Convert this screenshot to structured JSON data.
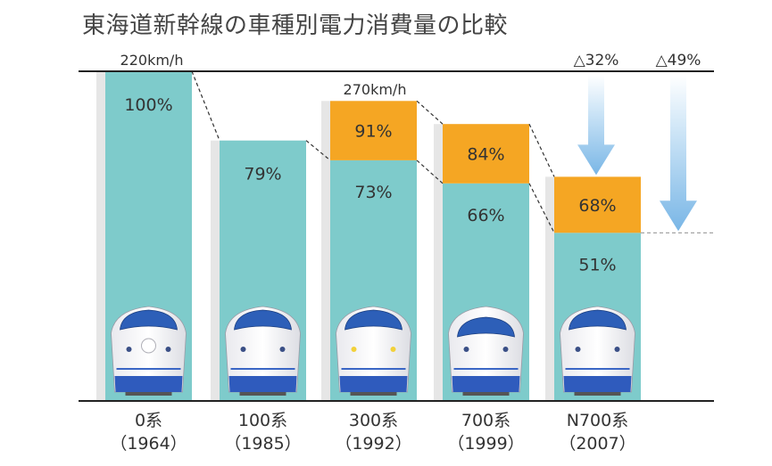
{
  "chart_data": {
    "type": "bar",
    "title": "東海道新幹線の車種別電力消費量の比較",
    "categories": [
      {
        "name": "0系",
        "year": "（1964）"
      },
      {
        "name": "100系",
        "year": "（1985）"
      },
      {
        "name": "300系",
        "year": "（1992）"
      },
      {
        "name": "700系",
        "year": "（1999）"
      },
      {
        "name": "N700系",
        "year": "（2007）"
      }
    ],
    "series": [
      {
        "values": [
          100,
          79,
          73,
          66,
          51
        ],
        "labels": [
          "100%",
          "79%",
          "73%",
          "66%",
          "51%"
        ],
        "color": "#7ecbcb"
      },
      {
        "values": [
          null,
          null,
          91,
          84,
          68
        ],
        "labels": [
          "",
          "",
          "91%",
          "84%",
          "68%"
        ],
        "color": "#f5a623"
      }
    ],
    "speed_labels": {
      "220": "220km/h",
      "270": "270km/h"
    },
    "reductions": [
      "△32%",
      "△49%"
    ],
    "ylim": [
      0,
      100
    ],
    "grid": false,
    "colors": {
      "teal": "#7ecbcb",
      "orange": "#f5a623",
      "arrow": "#8ec3ea",
      "axis": "#222222",
      "shadow": "#e6e6e6"
    }
  }
}
